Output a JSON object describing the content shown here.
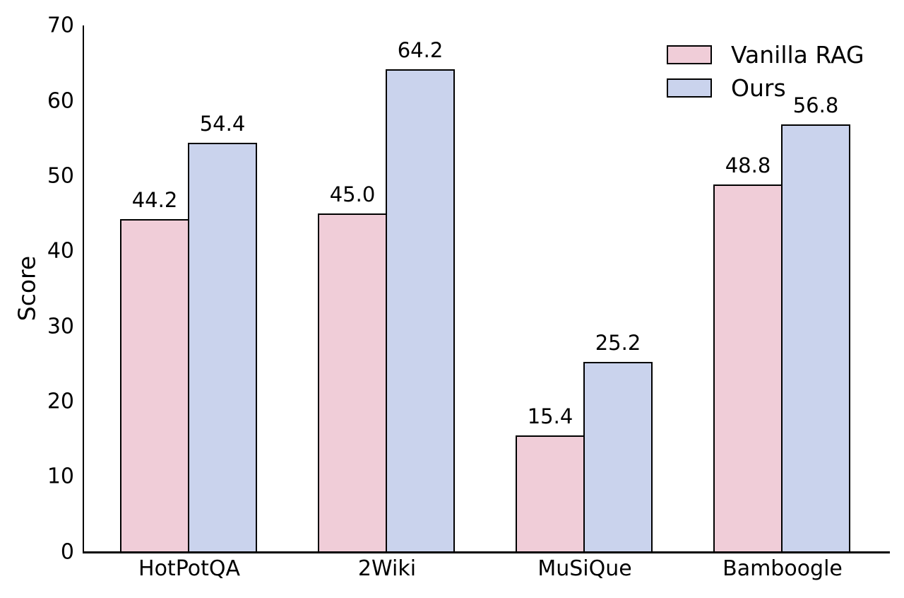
{
  "chart_data": {
    "type": "bar",
    "title": "",
    "categories": [
      "HotPotQA",
      "2Wiki",
      "MuSiQue",
      "Bamboogle"
    ],
    "series": [
      {
        "name": "Vanilla RAG",
        "color": "#f0cdd8",
        "values": [
          44.2,
          45.0,
          15.4,
          48.8
        ]
      },
      {
        "name": "Ours",
        "color": "#cad3ed",
        "values": [
          54.4,
          64.2,
          25.2,
          56.8
        ]
      }
    ],
    "xlabel": "",
    "ylabel": "Score",
    "ylim": [
      0,
      70
    ],
    "yticks": [
      0,
      10,
      20,
      30,
      40,
      50,
      60,
      70
    ],
    "grid": false,
    "legend_position": "top-right",
    "bar_edge_color": "#000000",
    "value_labels_shown": true,
    "value_label_decimals": 1
  }
}
